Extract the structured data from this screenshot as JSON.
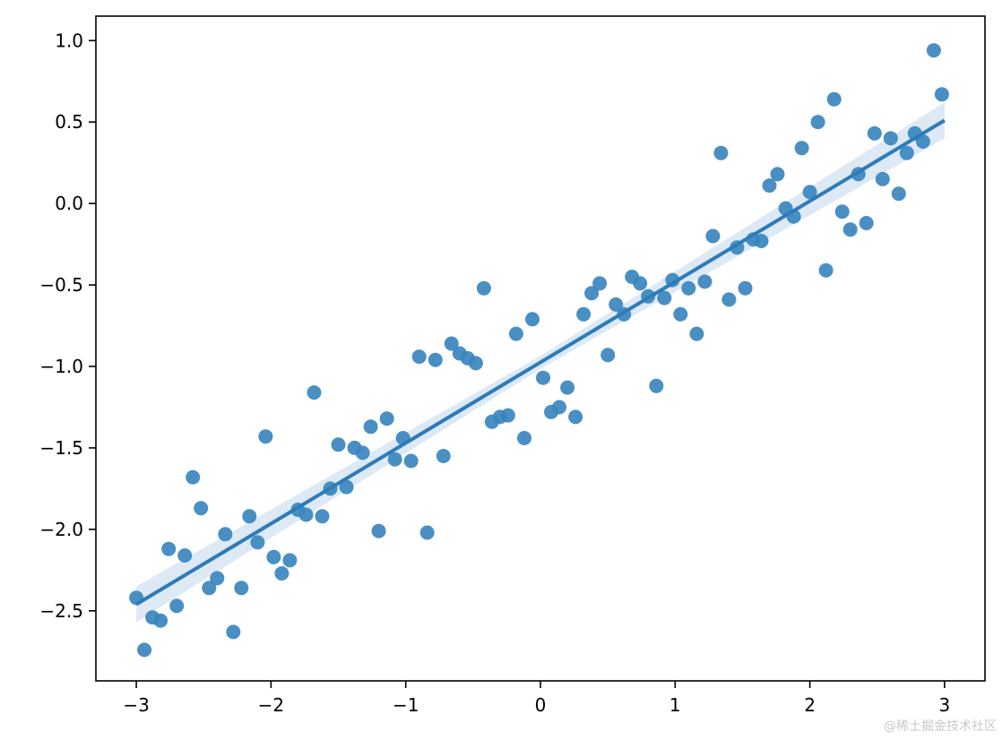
{
  "chart_data": {
    "type": "scatter",
    "title": "",
    "xlabel": "",
    "ylabel": "",
    "xlim": [
      -3.3,
      3.3
    ],
    "ylim": [
      -2.93,
      1.15
    ],
    "xticks": [
      -3,
      -2,
      -1,
      0,
      1,
      2,
      3
    ],
    "xtick_labels": [
      "−3",
      "−2",
      "−1",
      "0",
      "1",
      "2",
      "3"
    ],
    "yticks": [
      -2.5,
      -2.0,
      -1.5,
      -1.0,
      -0.5,
      0.0,
      0.5,
      1.0
    ],
    "ytick_labels": [
      "−2.5",
      "−2.0",
      "−1.5",
      "−1.0",
      "−0.5",
      "0.0",
      "0.5",
      "1.0"
    ],
    "grid": false,
    "points_color": "#3a86be",
    "line_color": "#2d7bb9",
    "band_color": "#d7e5f2",
    "points": {
      "x": [
        -3.0,
        -2.94,
        -2.88,
        -2.82,
        -2.76,
        -2.7,
        -2.64,
        -2.58,
        -2.52,
        -2.46,
        -2.4,
        -2.34,
        -2.28,
        -2.22,
        -2.16,
        -2.1,
        -2.04,
        -1.98,
        -1.92,
        -1.86,
        -1.8,
        -1.74,
        -1.68,
        -1.62,
        -1.56,
        -1.5,
        -1.44,
        -1.38,
        -1.32,
        -1.26,
        -1.2,
        -1.14,
        -1.08,
        -1.02,
        -0.96,
        -0.9,
        -0.84,
        -0.78,
        -0.72,
        -0.66,
        -0.6,
        -0.54,
        -0.48,
        -0.42,
        -0.36,
        -0.3,
        -0.24,
        -0.18,
        -0.12,
        -0.06,
        0.02,
        0.08,
        0.14,
        0.2,
        0.26,
        0.32,
        0.38,
        0.44,
        0.5,
        0.56,
        0.62,
        0.68,
        0.74,
        0.8,
        0.86,
        0.92,
        0.98,
        1.04,
        1.1,
        1.16,
        1.22,
        1.28,
        1.34,
        1.4,
        1.46,
        1.52,
        1.58,
        1.64,
        1.7,
        1.76,
        1.82,
        1.88,
        1.94,
        2.0,
        2.06,
        2.12,
        2.18,
        2.24,
        2.3,
        2.36,
        2.42,
        2.48,
        2.54,
        2.6,
        2.66,
        2.72,
        2.78,
        2.84,
        2.92,
        2.98
      ],
      "y": [
        -2.42,
        -2.74,
        -2.54,
        -2.56,
        -2.12,
        -2.47,
        -2.16,
        -1.68,
        -1.87,
        -2.36,
        -2.3,
        -2.03,
        -2.63,
        -2.36,
        -1.92,
        -2.08,
        -1.43,
        -2.17,
        -2.27,
        -2.19,
        -1.88,
        -1.91,
        -1.16,
        -1.92,
        -1.75,
        -1.48,
        -1.74,
        -1.5,
        -1.53,
        -1.37,
        -2.01,
        -1.32,
        -1.57,
        -1.44,
        -1.58,
        -0.94,
        -2.02,
        -0.96,
        -1.55,
        -0.86,
        -0.92,
        -0.95,
        -0.98,
        -0.52,
        -1.34,
        -1.31,
        -1.3,
        -0.8,
        -1.44,
        -0.71,
        -1.07,
        -1.28,
        -1.25,
        -1.13,
        -1.31,
        -0.68,
        -0.55,
        -0.49,
        -0.93,
        -0.62,
        -0.68,
        -0.45,
        -0.49,
        -0.57,
        -1.12,
        -0.58,
        -0.47,
        -0.68,
        -0.52,
        -0.8,
        -0.48,
        -0.2,
        0.31,
        -0.59,
        -0.27,
        -0.52,
        -0.22,
        -0.23,
        0.11,
        0.18,
        -0.03,
        -0.08,
        0.34,
        0.07,
        0.5,
        -0.41,
        0.64,
        -0.05,
        -0.16,
        0.18,
        -0.12,
        0.43,
        0.15,
        0.4,
        0.06,
        0.31,
        0.43,
        0.38,
        0.94,
        0.67
      ]
    },
    "regression": {
      "x": [
        -3.0,
        3.0
      ],
      "y": [
        -2.46,
        0.51
      ],
      "ci_halfwidth": [
        0.11,
        0.04,
        0.11
      ]
    }
  },
  "watermark": "@稀土掘金技术社区"
}
